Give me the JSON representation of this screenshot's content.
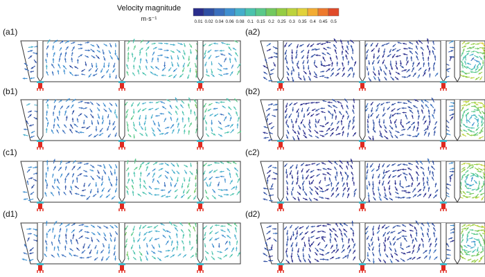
{
  "legend": {
    "title": "Velocity magnitude",
    "unit": "m·s⁻¹",
    "ticks": [
      "0.01",
      "0.02",
      "0.04",
      "0.06",
      "0.08",
      "0.1",
      "0.15",
      "0.2",
      "0.25",
      "0.3",
      "0.35",
      "0.4",
      "0.45",
      "0.5"
    ],
    "colors": [
      "#2a2d8c",
      "#2f4fa3",
      "#3a6fbd",
      "#3f8fd0",
      "#45aecb",
      "#4bc3ad",
      "#5ac98a",
      "#73c95f",
      "#95cd43",
      "#bcd33c",
      "#e1d23a",
      "#f3ac33",
      "#ee7a2d",
      "#e04b2a"
    ]
  },
  "panels": [
    {
      "label": "(a1)",
      "variant": "left"
    },
    {
      "label": "(b1)",
      "variant": "left"
    },
    {
      "label": "(c1)",
      "variant": "left"
    },
    {
      "label": "(d1)",
      "variant": "left"
    },
    {
      "label": "(a2)",
      "variant": "right"
    },
    {
      "label": "(b2)",
      "variant": "right"
    },
    {
      "label": "(c2)",
      "variant": "right"
    },
    {
      "label": "(d2)",
      "variant": "right"
    }
  ]
}
